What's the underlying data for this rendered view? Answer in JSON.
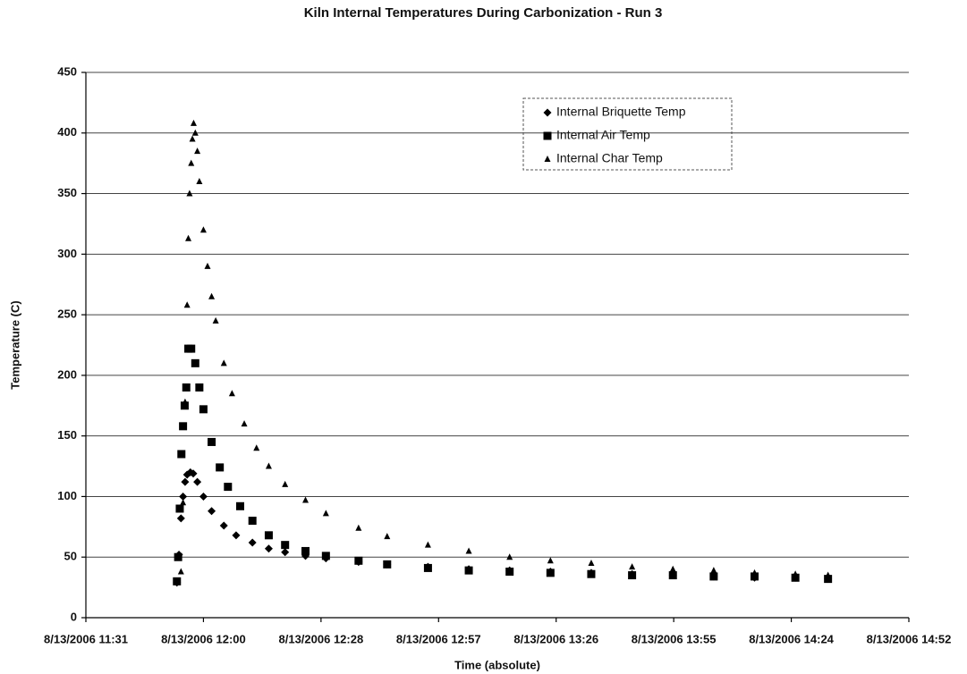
{
  "chart_data": {
    "type": "scatter",
    "title": "Kiln Internal Temperatures During Carbonization - Run 3",
    "x_label": "Time (absolute)",
    "y_label": "Temperature (C)",
    "xlim": [
      691.2,
      892.8
    ],
    "xticks": [
      {
        "value": 691.2,
        "label": "8/13/2006 11:31"
      },
      {
        "value": 720,
        "label": "8/13/2006 12:00"
      },
      {
        "value": 748.8,
        "label": "8/13/2006 12:28"
      },
      {
        "value": 777.6,
        "label": "8/13/2006 12:57"
      },
      {
        "value": 806.4,
        "label": "8/13/2006 13:26"
      },
      {
        "value": 835.2,
        "label": "8/13/2006 13:55"
      },
      {
        "value": 864,
        "label": "8/13/2006 14:24"
      },
      {
        "value": 892.8,
        "label": "8/13/2006 14:52"
      }
    ],
    "ylim": [
      0,
      450
    ],
    "yticks": [
      0,
      50,
      100,
      150,
      200,
      250,
      300,
      350,
      400,
      450
    ],
    "grid": true,
    "legend": "upper right",
    "series": [
      {
        "name": "Internal Briquette Temp",
        "color": "#000000",
        "marker": "diamond",
        "x": [
          713.5,
          714,
          714.5,
          715,
          715.5,
          716,
          716.8,
          717.5,
          718.5,
          720,
          722,
          725,
          728,
          732,
          736,
          740,
          745,
          750,
          758,
          765,
          775,
          785,
          795,
          805,
          815,
          825,
          835,
          845,
          855,
          865,
          873
        ],
        "values": [
          29,
          52,
          82,
          100,
          112,
          118,
          120,
          119,
          112,
          100,
          88,
          76,
          68,
          62,
          57,
          54,
          51,
          49,
          46,
          44,
          42,
          40,
          39,
          38,
          37,
          36,
          35,
          34,
          33,
          33,
          32
        ]
      },
      {
        "name": "Internal Air Temp",
        "color": "#000000",
        "marker": "square",
        "x": [
          713.5,
          713.8,
          714.2,
          714.6,
          715,
          715.4,
          715.8,
          716.3,
          717,
          718,
          719,
          720,
          722,
          724,
          726,
          729,
          732,
          736,
          740,
          745,
          750,
          758,
          765,
          775,
          785,
          795,
          805,
          815,
          825,
          835,
          845,
          855,
          865,
          873
        ],
        "values": [
          30,
          50,
          90,
          135,
          158,
          175,
          190,
          222,
          222,
          210,
          190,
          172,
          145,
          124,
          108,
          92,
          80,
          68,
          60,
          55,
          51,
          47,
          44,
          41,
          39,
          38,
          37,
          36,
          35,
          35,
          34,
          34,
          33,
          32
        ]
      },
      {
        "name": "Internal Char Temp",
        "color": "#000000",
        "marker": "triangle",
        "x": [
          714.5,
          715,
          715.5,
          716,
          716.3,
          716.6,
          717,
          717.3,
          717.6,
          718,
          718.5,
          719,
          720,
          721,
          722,
          723,
          725,
          727,
          730,
          733,
          736,
          740,
          745,
          750,
          758,
          765,
          775,
          785,
          795,
          805,
          815,
          825,
          835,
          845,
          855,
          865,
          873
        ],
        "values": [
          38,
          95,
          178,
          258,
          313,
          350,
          375,
          395,
          408,
          400,
          385,
          360,
          320,
          290,
          265,
          245,
          210,
          185,
          160,
          140,
          125,
          110,
          97,
          86,
          74,
          67,
          60,
          55,
          50,
          47,
          45,
          42,
          40,
          39,
          37,
          36,
          35
        ]
      }
    ]
  }
}
